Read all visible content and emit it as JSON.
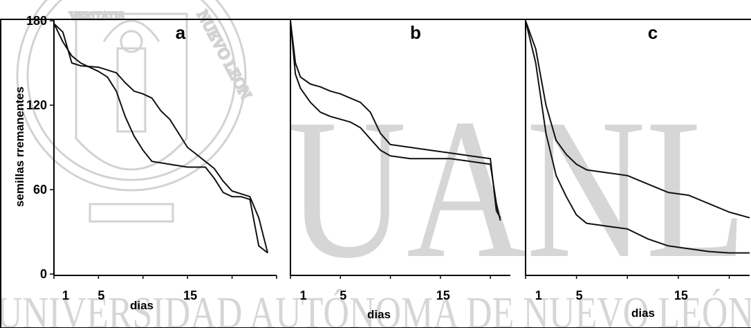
{
  "watermark": {
    "big_text": "UANL",
    "bottom_text": "UNIVERSIDAD AUTÓNOMA DE NUEVO LEÓN",
    "seal_text": [
      "VERITATIS",
      "NUEVO LEON"
    ],
    "color": "#d6d6d6"
  },
  "colors": {
    "line": "#111111",
    "axis": "#000000"
  },
  "chart_data": [
    {
      "type": "line",
      "panel_label": "a",
      "ylabel": "semillas rremanentes",
      "xlabel": "dias",
      "ylim": [
        0,
        180
      ],
      "yticks": [
        0,
        60,
        120,
        180
      ],
      "xticks": [
        1,
        5,
        15
      ],
      "xlim": [
        0,
        25
      ],
      "grid": false,
      "series": [
        {
          "x": [
            0,
            1,
            2,
            3,
            5,
            7,
            8,
            9,
            10,
            11,
            12,
            13,
            15,
            17,
            18,
            19,
            20,
            21,
            22,
            23,
            24
          ],
          "values": [
            178,
            172,
            150,
            148,
            147,
            143,
            136,
            130,
            128,
            125,
            116,
            110,
            90,
            80,
            75,
            66,
            59,
            57,
            55,
            40,
            15
          ]
        },
        {
          "x": [
            0,
            1,
            2,
            3,
            5,
            6,
            7,
            8,
            9,
            10,
            11,
            13,
            15,
            17,
            18,
            19,
            20,
            21,
            22,
            23,
            24
          ],
          "values": [
            178,
            165,
            155,
            150,
            144,
            140,
            130,
            112,
            98,
            88,
            80,
            78,
            76,
            76,
            68,
            58,
            55,
            55,
            53,
            20,
            15
          ]
        }
      ]
    },
    {
      "type": "line",
      "panel_label": "b",
      "xlabel": "dias",
      "ylim": [
        0,
        180
      ],
      "xticks": [
        1,
        5,
        15
      ],
      "xlim": [
        0,
        22
      ],
      "grid": false,
      "series": [
        {
          "x": [
            0,
            0.5,
            1,
            2,
            3,
            4,
            5,
            6,
            7,
            8,
            9,
            10,
            12,
            14,
            16,
            18,
            20,
            20.6,
            21
          ],
          "values": [
            180,
            150,
            140,
            135,
            133,
            130,
            128,
            125,
            122,
            115,
            100,
            92,
            90,
            88,
            86,
            84,
            82,
            45,
            40
          ]
        },
        {
          "x": [
            0,
            0.5,
            1,
            2,
            3,
            4,
            5,
            6,
            7,
            8,
            9,
            10,
            12,
            14,
            16,
            18,
            20,
            20.6,
            21
          ],
          "values": [
            180,
            142,
            132,
            122,
            115,
            112,
            110,
            108,
            104,
            96,
            88,
            84,
            82,
            82,
            82,
            80,
            78,
            50,
            38
          ]
        }
      ]
    },
    {
      "type": "line",
      "panel_label": "c",
      "xlabel": "dias",
      "ylim": [
        0,
        180
      ],
      "xticks": [
        1,
        5,
        15
      ],
      "xlim": [
        0,
        22
      ],
      "grid": false,
      "series": [
        {
          "x": [
            0,
            1,
            2,
            3,
            4,
            5,
            6,
            8,
            10,
            12,
            14,
            16,
            18,
            20,
            22
          ],
          "values": [
            180,
            160,
            120,
            95,
            85,
            78,
            74,
            72,
            70,
            64,
            58,
            56,
            50,
            44,
            40
          ]
        },
        {
          "x": [
            0,
            1,
            2,
            3,
            4,
            5,
            6,
            8,
            10,
            12,
            14,
            16,
            18,
            20,
            22
          ],
          "values": [
            180,
            150,
            100,
            70,
            55,
            42,
            36,
            34,
            32,
            25,
            20,
            18,
            16,
            15,
            15
          ]
        }
      ]
    }
  ]
}
